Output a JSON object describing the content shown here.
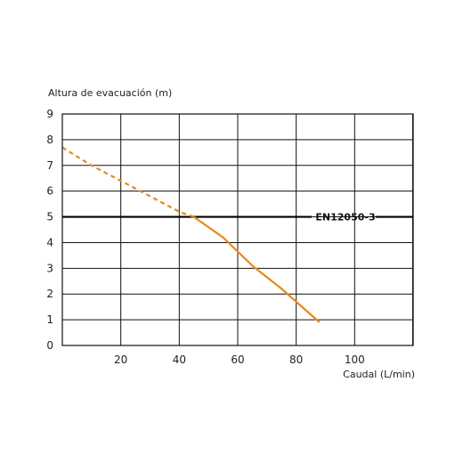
{
  "chart_data": {
    "type": "line",
    "title": "",
    "ylabel": "Altura de evacuación (m)",
    "xlabel": "Caudal (L/min)",
    "xlim": [
      0,
      120
    ],
    "ylim": [
      0,
      9
    ],
    "x_ticks": [
      20,
      40,
      60,
      80,
      100
    ],
    "y_ticks": [
      0,
      1,
      2,
      3,
      4,
      5,
      6,
      7,
      8,
      9
    ],
    "grid": true,
    "series": [
      {
        "color": "#e8891f",
        "segments": [
          {
            "style": "dashed",
            "points": [
              [
                0,
                7.7
              ],
              [
                10,
                7.0
              ],
              [
                20,
                6.4
              ],
              [
                30,
                5.8
              ],
              [
                40,
                5.2
              ],
              [
                45,
                5.0
              ]
            ]
          },
          {
            "style": "solid",
            "points": [
              [
                45,
                5.0
              ],
              [
                55,
                4.2
              ],
              [
                65,
                3.1
              ],
              [
                75,
                2.2
              ],
              [
                88,
                0.9
              ]
            ]
          }
        ]
      }
    ],
    "reference_line": {
      "y": 5,
      "label": "EN12050-3",
      "color": "#000000"
    }
  }
}
